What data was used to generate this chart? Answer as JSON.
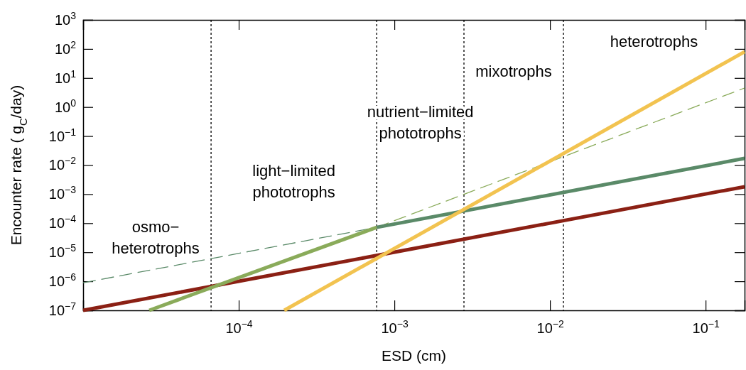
{
  "chart_data": {
    "type": "line",
    "xlabel": "ESD (cm)",
    "ylabel": "Encounter rate (  g$_{C}$/day)",
    "log": "xy",
    "grid": false,
    "marker": "none",
    "xlim": [
      1e-05,
      0.178
    ],
    "ylim": [
      1e-07,
      1000
    ],
    "xticks": [
      {
        "value": 0.0001,
        "label": "10$^{−4}$"
      },
      {
        "value": 0.001,
        "label": "10$^{−3}$"
      },
      {
        "value": 0.01,
        "label": "10$^{−2}$"
      },
      {
        "value": 0.1,
        "label": "10$^{−1}$"
      }
    ],
    "yticks": [
      {
        "value": 1e-07,
        "label": "10$^{−7}$"
      },
      {
        "value": 1e-06,
        "label": "10$^{−6}$"
      },
      {
        "value": 1e-05,
        "label": "10$^{−5}$"
      },
      {
        "value": 0.0001,
        "label": "10$^{−4}$"
      },
      {
        "value": 0.001,
        "label": "10$^{−3}$"
      },
      {
        "value": 0.01,
        "label": "10$^{−2}$"
      },
      {
        "value": 0.1,
        "label": "10$^{−1}$"
      },
      {
        "value": 1,
        "label": "10$^{0}$"
      },
      {
        "value": 10,
        "label": "10$^{1}$"
      },
      {
        "value": 100,
        "label": "10$^{2}$"
      },
      {
        "value": 1000,
        "label": "10$^{3}$"
      }
    ],
    "series": [
      {
        "color": "#5a8a68",
        "line_style": "dashed",
        "x": [
          1e-05,
          0.00077
        ],
        "values": [
          8.9e-07,
          7.2e-05
        ]
      },
      {
        "color": "#8aab5a",
        "line_style": "dashed",
        "x": [
          0.00077,
          0.178
        ],
        "values": [
          7.2e-05,
          4.5
        ]
      },
      {
        "color": "#8b2014",
        "line_style": "solid",
        "x": [
          1e-05,
          0.178
        ],
        "values": [
          1e-07,
          0.0018
        ]
      },
      {
        "color": "#8aab5a",
        "line_style": "solid",
        "x": [
          2.66e-05,
          0.00077
        ],
        "values": [
          1e-07,
          7.2e-05
        ]
      },
      {
        "color": "#5a8a68",
        "line_style": "solid",
        "x": [
          0.00077,
          0.178
        ],
        "values": [
          7.2e-05,
          0.017
        ]
      },
      {
        "color": "#f2c350",
        "line_style": "solid",
        "x": [
          0.000196,
          0.178
        ],
        "values": [
          1e-07,
          80
        ]
      }
    ],
    "ref_lines": [
      {
        "axis": "x",
        "value": 6.64e-05,
        "line_style": "dotted",
        "color": "#000000"
      },
      {
        "axis": "x",
        "value": 0.00077,
        "line_style": "dotted",
        "color": "#000000"
      },
      {
        "axis": "x",
        "value": 0.0028,
        "line_style": "dotted",
        "color": "#000000"
      },
      {
        "axis": "x",
        "value": 0.0122,
        "line_style": "dotted",
        "color": "#000000"
      }
    ],
    "annotations": [
      "osmo−\nheterotrophs",
      "light−limited\nphototrophs",
      "nutrient−limited\nphototrophs",
      "mixotrophs",
      "heterotrophs"
    ]
  }
}
